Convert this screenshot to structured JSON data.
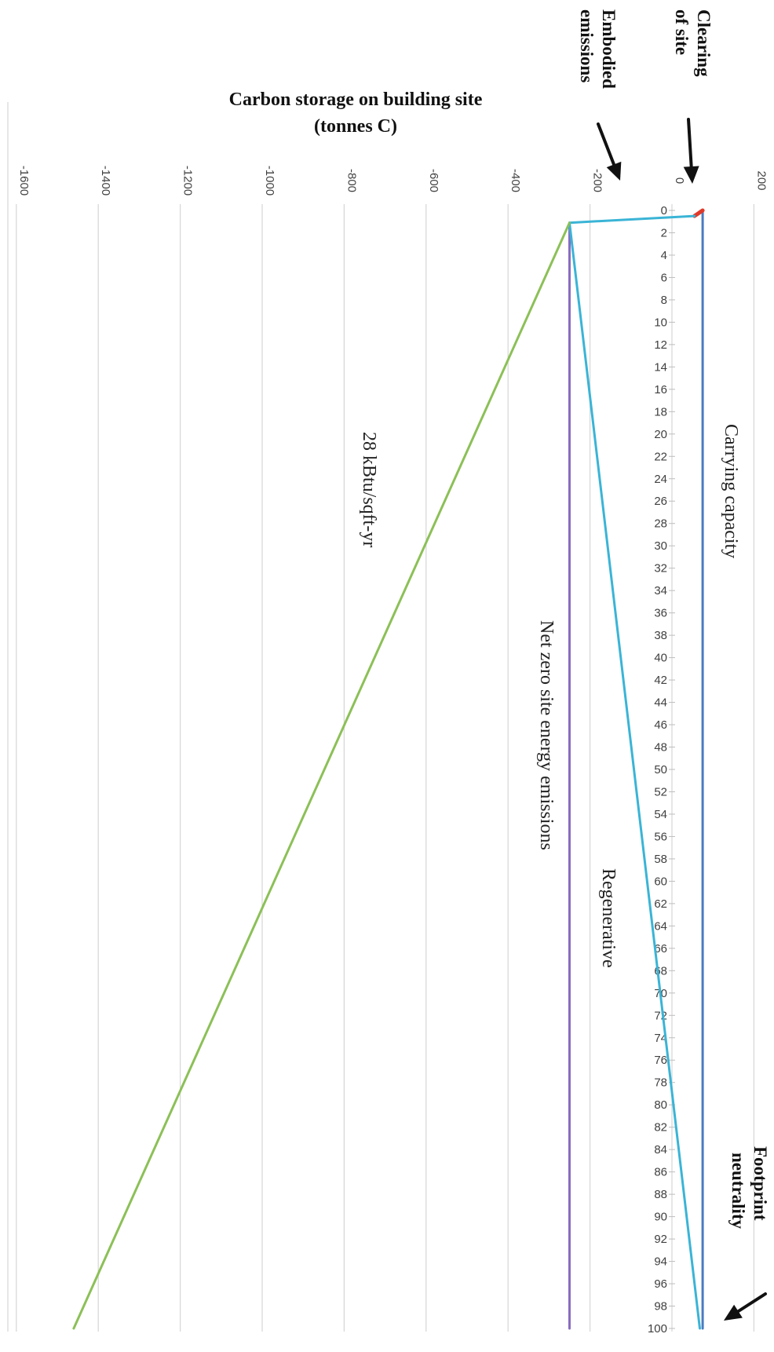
{
  "chart_data": {
    "type": "line",
    "orientation": "rotated-90-clockwise",
    "title": "Carbon storage on building site (tonnes C)",
    "y_axis": {
      "label": "Carbon storage on building site (tonnes C)",
      "range": [
        -1600,
        200
      ],
      "ticks": [
        200,
        0,
        -200,
        -400,
        -600,
        -800,
        -1000,
        -1200,
        -1400,
        -1600
      ],
      "grid": true
    },
    "x_axis": {
      "range": [
        0,
        100
      ],
      "ticks": [
        0,
        2,
        4,
        6,
        8,
        10,
        12,
        14,
        16,
        18,
        20,
        22,
        24,
        26,
        28,
        30,
        32,
        34,
        36,
        38,
        40,
        42,
        44,
        46,
        48,
        50,
        52,
        54,
        56,
        58,
        60,
        62,
        64,
        66,
        68,
        70,
        72,
        74,
        76,
        78,
        80,
        82,
        84,
        86,
        88,
        90,
        92,
        94,
        96,
        98,
        100
      ]
    },
    "series": [
      {
        "key": "carrying",
        "color": "#4a7bc0",
        "x": [
          0,
          100
        ],
        "y": [
          75,
          75
        ]
      },
      {
        "key": "clearing",
        "color": "#e03a2a",
        "x": [
          0,
          0.5
        ],
        "y": [
          75,
          55
        ]
      },
      {
        "key": "embodied",
        "color": "#3ab4d6",
        "x": [
          0.5,
          1.1
        ],
        "y": [
          55,
          -250
        ]
      },
      {
        "key": "netzero",
        "color": "#8a6cc0",
        "x": [
          1.1,
          100
        ],
        "y": [
          -250,
          -250
        ]
      },
      {
        "key": "regenerative",
        "color": "#3ab4d6",
        "x": [
          1.1,
          100
        ],
        "y": [
          -250,
          68
        ]
      },
      {
        "key": "kbtu28",
        "color": "#8cc057",
        "x": [
          1.1,
          100
        ],
        "y": [
          -250,
          -1460
        ]
      }
    ],
    "annotations": {
      "carrying": "Carrying capacity",
      "regenerative": "Regenerative",
      "netzero": "Net zero site energy emissions",
      "kbtu28": "28 kBtu/sqft-yr",
      "clearing_line1": "Clearing",
      "clearing_line2": "of site",
      "embodied_line1": "Embodied",
      "embodied_line2": "emissions",
      "footprint_line1": "Footprint",
      "footprint_line2": "neutrality",
      "title_line1": "Carbon storage on building site",
      "title_line2": "(tonnes C)"
    }
  }
}
